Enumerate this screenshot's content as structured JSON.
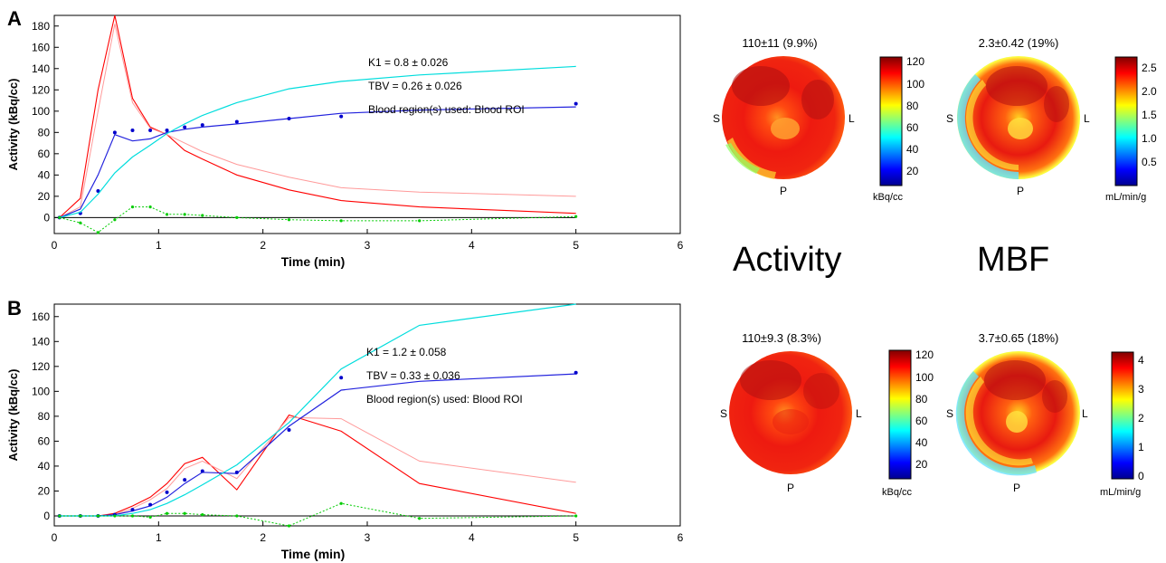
{
  "panels": [
    {
      "letter": "A"
    },
    {
      "letter": "B"
    }
  ],
  "labels": {
    "activity": "Activity",
    "mbf": "MBF"
  },
  "polar_maps": [
    {
      "title": "110±11 (9.9%)",
      "unit": "kBq/cc",
      "ticks": [
        "120",
        "100",
        "80",
        "60",
        "40",
        "20"
      ],
      "directions": {
        "s": "S",
        "l": "L",
        "p": "P"
      }
    },
    {
      "title": "2.3±0.42 (19%)",
      "unit": "mL/min/g",
      "ticks": [
        "2.5",
        "2.0",
        "1.5",
        "1.0",
        "0.5"
      ],
      "directions": {
        "s": "S",
        "l": "L",
        "p": "P"
      }
    },
    {
      "title": "110±9.3 (8.3%)",
      "unit": "kBq/cc",
      "ticks": [
        "120",
        "100",
        "80",
        "60",
        "40",
        "20"
      ],
      "directions": {
        "s": "S",
        "l": "L",
        "p": "P"
      }
    },
    {
      "title": "3.7±0.65 (18%)",
      "unit": "mL/min/g",
      "ticks": [
        "4",
        "3",
        "2",
        "1",
        "0"
      ],
      "directions": {
        "s": "S",
        "l": "L",
        "p": "P"
      }
    }
  ],
  "colors": {
    "blood_input": "#ff0000",
    "blood_fit": "#ff9a9a",
    "tissue_fit": "#2222dd",
    "tissue_points": "#0000cc",
    "component": "#00dddd",
    "residual": "#00cc00",
    "zero": "#000000"
  },
  "chart_data": [
    {
      "type": "line",
      "xlabel": "Time (min)",
      "ylabel": "Activity (kBq/cc)",
      "xlim": [
        0,
        6
      ],
      "ylim": [
        -15,
        190
      ],
      "xticks": [
        "0",
        "1",
        "2",
        "3",
        "4",
        "5",
        "6"
      ],
      "yticks": [
        "0",
        "20",
        "40",
        "60",
        "80",
        "100",
        "120",
        "140",
        "160",
        "180"
      ],
      "annotations": [
        "K1 = 0.8 ± 0.026",
        "TBV = 0.26 ± 0.026",
        "Blood region(s) used: Blood ROI"
      ],
      "series": [
        {
          "role": "blood_input",
          "x": [
            0.05,
            0.25,
            0.42,
            0.58,
            0.75,
            0.92,
            1.08,
            1.25,
            1.42,
            1.75,
            2.25,
            2.75,
            3.5,
            5.0
          ],
          "y": [
            0,
            18,
            120,
            190,
            112,
            85,
            78,
            63,
            55,
            40,
            26,
            16,
            10,
            4
          ]
        },
        {
          "role": "blood_fit",
          "x": [
            0.05,
            0.25,
            0.42,
            0.58,
            0.75,
            0.92,
            1.08,
            1.25,
            1.42,
            1.75,
            2.25,
            2.75,
            3.5,
            5.0
          ],
          "y": [
            0,
            10,
            100,
            182,
            108,
            84,
            78,
            70,
            62,
            50,
            38,
            28,
            24,
            20
          ]
        },
        {
          "role": "tissue_fit",
          "x": [
            0.05,
            0.25,
            0.42,
            0.58,
            0.75,
            0.92,
            1.08,
            1.25,
            1.42,
            1.75,
            2.25,
            2.75,
            3.5,
            5.0
          ],
          "y": [
            0,
            8,
            40,
            78,
            72,
            74,
            80,
            83,
            85,
            88,
            93,
            98,
            101,
            104
          ]
        },
        {
          "role": "tissue_points",
          "x": [
            0.05,
            0.25,
            0.42,
            0.58,
            0.75,
            0.92,
            1.08,
            1.25,
            1.42,
            1.75,
            2.25,
            2.75,
            5.0
          ],
          "y": [
            0,
            4,
            25,
            80,
            82,
            82,
            82,
            85,
            87,
            90,
            93,
            95,
            107
          ]
        },
        {
          "role": "component",
          "x": [
            0.05,
            0.25,
            0.42,
            0.58,
            0.75,
            0.92,
            1.08,
            1.25,
            1.42,
            1.75,
            2.25,
            2.75,
            3.5,
            5.0
          ],
          "y": [
            0,
            5,
            22,
            42,
            57,
            68,
            79,
            88,
            96,
            108,
            121,
            128,
            134,
            142
          ]
        },
        {
          "role": "residual",
          "x": [
            0.05,
            0.25,
            0.42,
            0.58,
            0.75,
            0.92,
            1.08,
            1.25,
            1.42,
            1.75,
            2.25,
            2.75,
            3.5,
            5.0
          ],
          "y": [
            0,
            -5,
            -14,
            -2,
            10,
            10,
            3,
            3,
            2,
            0,
            -2,
            -3,
            -3,
            1
          ]
        }
      ]
    },
    {
      "type": "line",
      "xlabel": "Time (min)",
      "ylabel": "Activity (kBq/cc)",
      "xlim": [
        0,
        6
      ],
      "ylim": [
        -8,
        170
      ],
      "xticks": [
        "0",
        "1",
        "2",
        "3",
        "4",
        "5",
        "6"
      ],
      "yticks": [
        "0",
        "20",
        "40",
        "60",
        "80",
        "100",
        "120",
        "140",
        "160"
      ],
      "annotations": [
        "K1 = 1.2 ± 0.058",
        "TBV = 0.33 ± 0.036",
        "Blood region(s) used: Blood ROI"
      ],
      "series": [
        {
          "role": "blood_input",
          "x": [
            0.05,
            0.25,
            0.42,
            0.58,
            0.75,
            0.92,
            1.08,
            1.25,
            1.42,
            1.75,
            2.25,
            2.75,
            3.5,
            5.0
          ],
          "y": [
            0,
            0,
            0,
            2,
            8,
            15,
            26,
            42,
            47,
            21,
            81,
            68,
            26,
            2
          ]
        },
        {
          "role": "blood_fit",
          "x": [
            0.05,
            0.25,
            0.42,
            0.58,
            0.75,
            0.92,
            1.08,
            1.25,
            1.42,
            1.75,
            2.25,
            2.75,
            3.5,
            5.0
          ],
          "y": [
            0,
            0,
            0,
            1,
            6,
            13,
            22,
            38,
            44,
            30,
            79,
            78,
            44,
            27
          ]
        },
        {
          "role": "tissue_fit",
          "x": [
            0.05,
            0.25,
            0.42,
            0.58,
            0.75,
            0.92,
            1.08,
            1.25,
            1.42,
            1.75,
            2.25,
            2.75,
            3.5,
            5.0
          ],
          "y": [
            0,
            0,
            0,
            1,
            4,
            8,
            15,
            26,
            35,
            34,
            72,
            101,
            108,
            114
          ]
        },
        {
          "role": "tissue_points",
          "x": [
            0.05,
            0.25,
            0.42,
            0.58,
            0.75,
            0.92,
            1.08,
            1.25,
            1.42,
            1.75,
            2.25,
            2.75,
            5.0
          ],
          "y": [
            0,
            0,
            0,
            1,
            5,
            9,
            19,
            29,
            36,
            35,
            69,
            111,
            115
          ]
        },
        {
          "role": "component",
          "x": [
            0.05,
            0.25,
            0.42,
            0.58,
            0.75,
            0.92,
            1.08,
            1.25,
            1.42,
            1.75,
            2.25,
            2.75,
            3.5,
            5.0
          ],
          "y": [
            0,
            0,
            0,
            0,
            2,
            5,
            10,
            17,
            25,
            41,
            75,
            118,
            153,
            170
          ]
        },
        {
          "role": "residual",
          "x": [
            0.05,
            0.25,
            0.42,
            0.58,
            0.75,
            0.92,
            1.08,
            1.25,
            1.42,
            1.75,
            2.25,
            2.75,
            3.5,
            5.0
          ],
          "y": [
            0,
            0,
            0,
            0,
            0,
            -1,
            2,
            2,
            1,
            0,
            -8,
            10,
            -2,
            0
          ]
        }
      ]
    }
  ]
}
